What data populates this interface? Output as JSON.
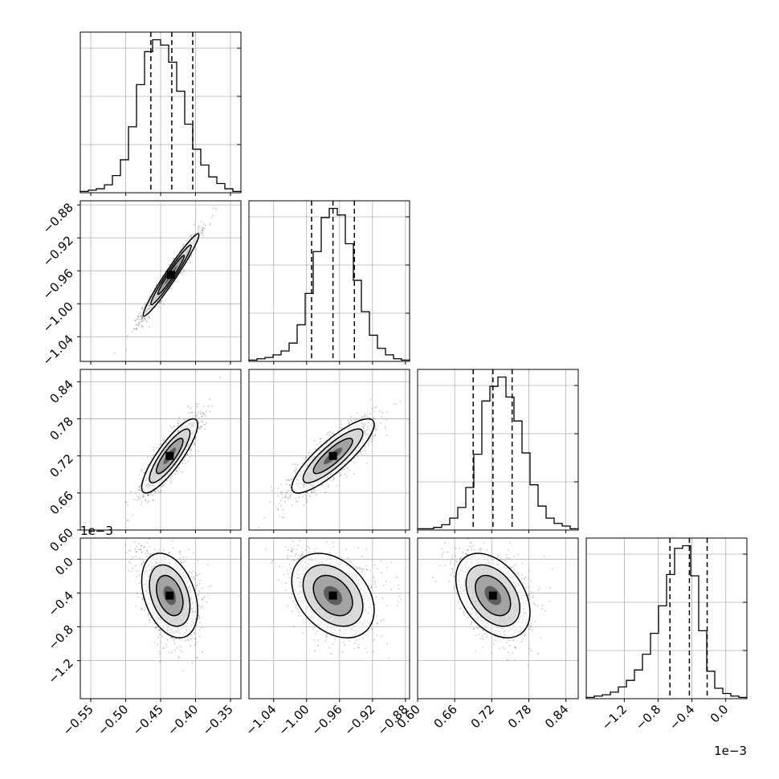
{
  "chart_data": {
    "type": "corner",
    "title": "",
    "parameters": [
      {
        "index": 0,
        "range": [
          -0.565,
          -0.335
        ],
        "ticks": [
          "−0.55",
          "−0.50",
          "−0.45",
          "−0.40",
          "−0.35"
        ],
        "tick_values": [
          -0.55,
          -0.5,
          -0.45,
          -0.4,
          -0.35
        ],
        "quantiles": [
          -0.464,
          -0.434,
          -0.404
        ],
        "hist_counts": [
          1,
          2,
          3,
          6,
          13,
          25,
          50,
          82,
          107,
          116,
          112,
          99,
          77,
          52,
          33,
          21,
          12,
          7,
          3,
          1
        ]
      },
      {
        "index": 1,
        "range": [
          -1.07,
          -0.875
        ],
        "ticks": [
          "−1.04",
          "−1.00",
          "−0.96",
          "−0.92",
          "−0.88"
        ],
        "tick_values": [
          -1.04,
          -1.0,
          -0.96,
          -0.92,
          -0.88
        ],
        "quantiles": [
          -0.994,
          -0.968,
          -0.942
        ],
        "hist_counts": [
          1,
          2,
          3,
          5,
          8,
          14,
          28,
          52,
          84,
          110,
          117,
          112,
          90,
          62,
          38,
          20,
          10,
          5,
          2,
          1
        ]
      },
      {
        "index": 2,
        "range": [
          0.6,
          0.86
        ],
        "ticks": [
          "0.60",
          "0.66",
          "0.72",
          "0.78",
          "0.84"
        ],
        "tick_values": [
          0.6,
          0.66,
          0.72,
          0.78,
          0.84
        ],
        "quantiles": [
          0.69,
          0.722,
          0.753
        ],
        "hist_counts": [
          1,
          1,
          2,
          4,
          9,
          17,
          32,
          57,
          97,
          108,
          115,
          100,
          82,
          58,
          34,
          18,
          9,
          5,
          3,
          1
        ]
      },
      {
        "index": 3,
        "range": [
          -1.65,
          0.25
        ],
        "ticks": [
          "−1.2",
          "−0.8",
          "−0.4",
          "0.0"
        ],
        "tick_values": [
          -1.2,
          -0.8,
          -0.4,
          0.0
        ],
        "quantiles": [
          -0.66,
          -0.43,
          -0.22
        ],
        "hist_counts": [
          1,
          2,
          3,
          5,
          9,
          14,
          22,
          34,
          50,
          71,
          95,
          115,
          117,
          94,
          52,
          21,
          8,
          4,
          2,
          1
        ],
        "offset_label": "1e−3"
      }
    ],
    "pairs": [
      {
        "x": 0,
        "y": 1,
        "center": [
          -0.435,
          -0.965
        ],
        "sd": [
          0.02,
          0.025
        ],
        "corr": 0.97,
        "skew": 0
      },
      {
        "x": 0,
        "y": 2,
        "center": [
          -0.437,
          0.72
        ],
        "sd": [
          0.02,
          0.03
        ],
        "corr": 0.85,
        "skew": 0
      },
      {
        "x": 1,
        "y": 2,
        "center": [
          -0.968,
          0.72
        ],
        "sd": [
          0.025,
          0.03
        ],
        "corr": 0.85,
        "skew": 0
      },
      {
        "x": 0,
        "y": 3,
        "center": [
          -0.437,
          -0.43
        ],
        "sd": [
          0.02,
          0.25
        ],
        "corr": -0.35,
        "skew": 0.6
      },
      {
        "x": 1,
        "y": 3,
        "center": [
          -0.968,
          -0.43
        ],
        "sd": [
          0.025,
          0.25
        ],
        "corr": -0.35,
        "skew": 0.6
      },
      {
        "x": 2,
        "y": 3,
        "center": [
          0.722,
          -0.43
        ],
        "sd": [
          0.03,
          0.25
        ],
        "corr": -0.4,
        "skew": 0.6
      }
    ],
    "grid": true,
    "colors": {
      "axes": "#000000",
      "grid": "#b0b0b0",
      "points": "#000000"
    }
  }
}
